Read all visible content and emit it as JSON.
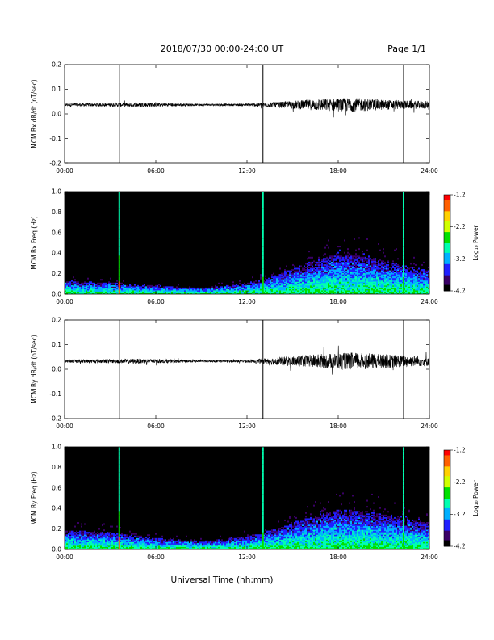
{
  "header": {
    "title": "2018/07/30  00:00-24:00 UT",
    "page": "Page 1/1"
  },
  "x_axis": {
    "title": "Universal Time (hh:mm)",
    "range_hours": [
      0,
      24
    ],
    "tick_hours": [
      0,
      6,
      12,
      18,
      24
    ],
    "tick_labels": [
      "00:00",
      "06:00",
      "12:00",
      "18:00",
      "24:00"
    ]
  },
  "colorbar": {
    "title": "Log₁₀ Power",
    "range": [
      -4.2,
      -1.2
    ],
    "tick_values": [
      -1.2,
      -2.2,
      -3.2,
      -4.2
    ],
    "tick_labels": [
      "-1.2",
      "-2.2",
      "-3.2",
      "-4.2"
    ],
    "colors": [
      "#000000",
      "#3a0066",
      "#2020ff",
      "#00b0ff",
      "#00ffb0",
      "#00e000",
      "#d0ff00",
      "#ffd000",
      "#ff6000",
      "#ff0000"
    ]
  },
  "chart_data": [
    {
      "type": "line",
      "ylabel": "MCM Bx dB/dt (nT/sec)",
      "ylim": [
        -0.2,
        0.2
      ],
      "ytick_values": [
        -0.2,
        -0.1,
        0.0,
        0.1,
        0.2
      ],
      "ytick_labels": [
        "-0.2",
        "-0.1",
        "0.0",
        "0.1",
        "0.2"
      ],
      "baseline": 0.037,
      "noise_envelope": [
        {
          "hour": 0,
          "amplitude": 0.006
        },
        {
          "hour": 3,
          "amplitude": 0.007
        },
        {
          "hour": 5,
          "amplitude": 0.01
        },
        {
          "hour": 9,
          "amplitude": 0.004
        },
        {
          "hour": 12,
          "amplitude": 0.005
        },
        {
          "hour": 14,
          "amplitude": 0.012
        },
        {
          "hour": 17,
          "amplitude": 0.025
        },
        {
          "hour": 19,
          "amplitude": 0.028
        },
        {
          "hour": 22,
          "amplitude": 0.018
        },
        {
          "hour": 24,
          "amplitude": 0.015
        }
      ],
      "spikes": [
        {
          "hour": 3.6,
          "min": -0.2,
          "max": 0.2
        },
        {
          "hour": 13.05,
          "min": -0.2,
          "max": 0.2
        },
        {
          "hour": 22.3,
          "min": -0.2,
          "max": 0.2
        }
      ]
    },
    {
      "type": "heatmap",
      "ylabel": "MCM Bx Freq (Hz)",
      "ylim": [
        0.0,
        1.0
      ],
      "ytick_values": [
        0.0,
        0.2,
        0.4,
        0.6,
        0.8,
        1.0
      ],
      "ytick_labels": [
        "0.0",
        "0.2",
        "0.4",
        "0.6",
        "0.8",
        "1.0"
      ],
      "activity": [
        {
          "hour": 0,
          "top_freq": 0.12
        },
        {
          "hour": 3,
          "top_freq": 0.1
        },
        {
          "hour": 6,
          "top_freq": 0.07
        },
        {
          "hour": 9,
          "top_freq": 0.05
        },
        {
          "hour": 12,
          "top_freq": 0.1
        },
        {
          "hour": 14,
          "top_freq": 0.18
        },
        {
          "hour": 16,
          "top_freq": 0.3
        },
        {
          "hour": 18,
          "top_freq": 0.38
        },
        {
          "hour": 20,
          "top_freq": 0.35
        },
        {
          "hour": 22,
          "top_freq": 0.28
        },
        {
          "hour": 24,
          "top_freq": 0.22
        }
      ],
      "event_lines": [
        3.6,
        13.05,
        22.3
      ]
    },
    {
      "type": "line",
      "ylabel": "MCM By dB/dt (nT/sec)",
      "ylim": [
        -0.2,
        0.2
      ],
      "ytick_values": [
        -0.2,
        -0.1,
        0.0,
        0.1,
        0.2
      ],
      "ytick_labels": [
        "-0.2",
        "-0.1",
        "0.0",
        "0.1",
        "0.2"
      ],
      "baseline": 0.033,
      "noise_envelope": [
        {
          "hour": 0,
          "amplitude": 0.007
        },
        {
          "hour": 3,
          "amplitude": 0.008
        },
        {
          "hour": 5,
          "amplitude": 0.01
        },
        {
          "hour": 9,
          "amplitude": 0.004
        },
        {
          "hour": 12,
          "amplitude": 0.005
        },
        {
          "hour": 14,
          "amplitude": 0.016
        },
        {
          "hour": 17,
          "amplitude": 0.03
        },
        {
          "hour": 19,
          "amplitude": 0.035
        },
        {
          "hour": 22,
          "amplitude": 0.025
        },
        {
          "hour": 24,
          "amplitude": 0.02
        }
      ],
      "spikes": [
        {
          "hour": 3.6,
          "min": -0.2,
          "max": 0.2
        },
        {
          "hour": 13.05,
          "min": -0.2,
          "max": 0.2
        },
        {
          "hour": 22.3,
          "min": -0.2,
          "max": 0.2
        }
      ]
    },
    {
      "type": "heatmap",
      "ylabel": "MCM By Freq (Hz)",
      "ylim": [
        0.0,
        1.0
      ],
      "ytick_values": [
        0.0,
        0.2,
        0.4,
        0.6,
        0.8,
        1.0
      ],
      "ytick_labels": [
        "0.0",
        "0.2",
        "0.4",
        "0.6",
        "0.8",
        "1.0"
      ],
      "activity": [
        {
          "hour": 0,
          "top_freq": 0.18
        },
        {
          "hour": 3,
          "top_freq": 0.16
        },
        {
          "hour": 6,
          "top_freq": 0.1
        },
        {
          "hour": 9,
          "top_freq": 0.07
        },
        {
          "hour": 12,
          "top_freq": 0.12
        },
        {
          "hour": 14,
          "top_freq": 0.2
        },
        {
          "hour": 16,
          "top_freq": 0.3
        },
        {
          "hour": 18,
          "top_freq": 0.38
        },
        {
          "hour": 20,
          "top_freq": 0.36
        },
        {
          "hour": 22,
          "top_freq": 0.3
        },
        {
          "hour": 24,
          "top_freq": 0.25
        }
      ],
      "event_lines": [
        3.6,
        13.05,
        22.3
      ]
    }
  ]
}
